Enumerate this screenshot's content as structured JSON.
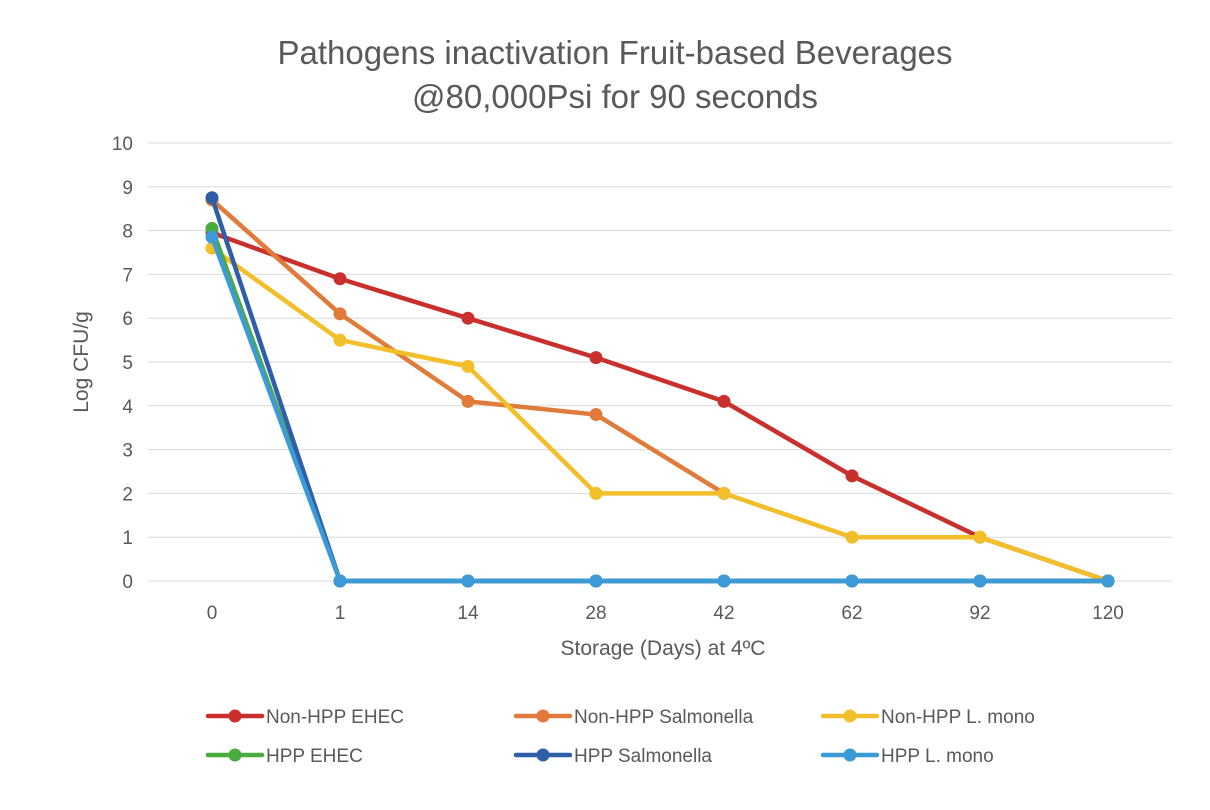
{
  "chart_data": {
    "type": "line",
    "title": [
      "Pathogens inactivation Fruit-based Beverages",
      "@80,000Psi for 90 seconds"
    ],
    "xlabel": "Storage (Days) at 4ºC",
    "ylabel": "Log CFU/g",
    "categories": [
      "0",
      "1",
      "14",
      "28",
      "42",
      "62",
      "92",
      "120"
    ],
    "ylim": [
      0,
      10
    ],
    "yticks": [
      "0",
      "1",
      "2",
      "3",
      "4",
      "5",
      "6",
      "7",
      "8",
      "9",
      "10"
    ],
    "grid": true,
    "legend_position": "bottom",
    "series": [
      {
        "name": "Non-HPP EHEC",
        "color": "#c9302c",
        "values": [
          7.95,
          6.9,
          6.0,
          5.1,
          4.1,
          2.4,
          1.0,
          0
        ]
      },
      {
        "name": "Non-HPP Salmonella",
        "color": "#e07b39",
        "values": [
          8.7,
          6.1,
          4.1,
          3.8,
          2.0,
          null,
          null,
          null
        ]
      },
      {
        "name": "Non-HPP L. mono",
        "color": "#f2bf2a",
        "values": [
          7.6,
          5.5,
          4.9,
          2.0,
          2.0,
          1.0,
          1.0,
          0
        ]
      },
      {
        "name": "HPP EHEC",
        "color": "#4aab3f",
        "values": [
          8.05,
          0,
          0,
          0,
          0,
          0,
          0,
          0
        ]
      },
      {
        "name": "HPP Salmonella",
        "color": "#2f5fa8",
        "values": [
          8.75,
          0,
          0,
          0,
          0,
          0,
          0,
          0
        ]
      },
      {
        "name": "HPP L. mono",
        "color": "#3c9bd6",
        "values": [
          7.85,
          0,
          0,
          0,
          0,
          0,
          0,
          0
        ]
      }
    ]
  }
}
